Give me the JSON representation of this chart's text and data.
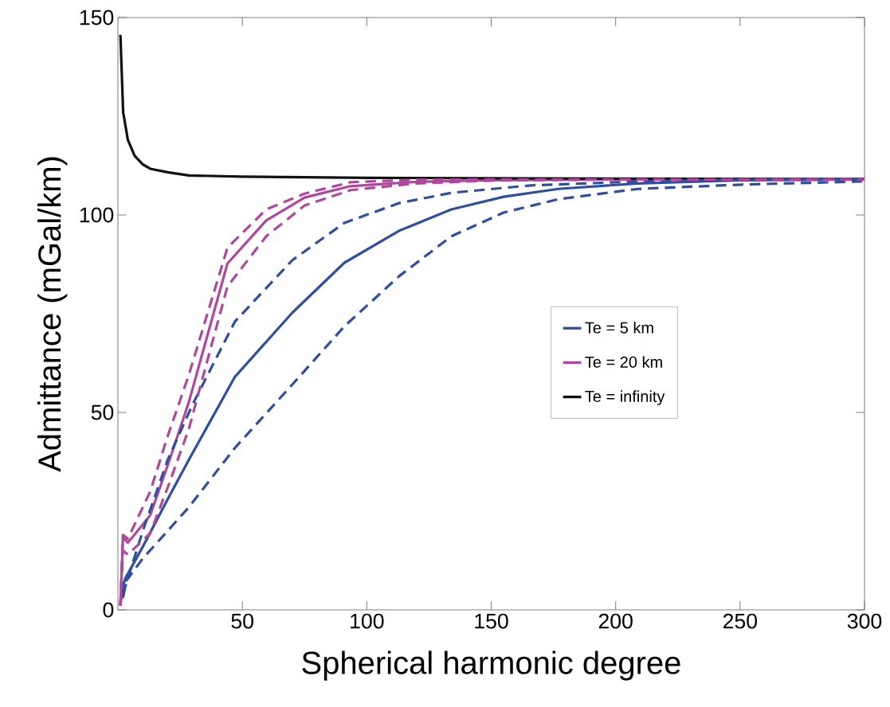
{
  "chart_data": {
    "type": "line",
    "xlabel": "Spherical harmonic degree",
    "ylabel": "Admittance (mGal/km)",
    "xlim": [
      0,
      300
    ],
    "ylim": [
      0,
      150
    ],
    "xticks": [
      50,
      100,
      150,
      200,
      250,
      300
    ],
    "yticks": [
      0,
      50,
      100,
      150
    ],
    "grid": false,
    "legend": "right",
    "series": [
      {
        "name": "Te = 5 km",
        "color": "#2e4fa0",
        "line_style": "solid",
        "x": [
          1,
          2,
          3,
          10,
          20,
          28.5,
          47,
          70,
          91,
          113,
          134,
          155,
          177,
          209,
          250,
          300
        ],
        "values": [
          1.2,
          6,
          8,
          16,
          28,
          38,
          59,
          75.2,
          87.9,
          96,
          101.4,
          104.6,
          106.6,
          108,
          108.8,
          109
        ]
      },
      {
        "name": "Te = 20 km",
        "color": "#b0479e",
        "line_style": "solid",
        "x": [
          1,
          2,
          4,
          13,
          20.7,
          28.5,
          44,
          59.6,
          75,
          93.5,
          120,
          150,
          200,
          300
        ],
        "values": [
          1,
          18.3,
          17,
          24,
          37.9,
          52.6,
          87.7,
          98.6,
          104.4,
          107.3,
          108.4,
          108.8,
          109,
          109
        ]
      },
      {
        "name": "Te = infinity",
        "color": "#111111",
        "line_style": "solid",
        "x": [
          1,
          2.1,
          4,
          6.7,
          10,
          13,
          20,
          28.5,
          50,
          100,
          200,
          300
        ],
        "values": [
          145.6,
          126,
          119,
          115,
          112.8,
          111.7,
          110.8,
          110,
          109.7,
          109.4,
          109.2,
          109.1
        ]
      },
      {
        "color": "#2e4fa0",
        "line_style": "dashed",
        "x": [
          2,
          5,
          10,
          20,
          30,
          47,
          70,
          91,
          113,
          134,
          166,
          210,
          250,
          300
        ],
        "values": [
          4,
          10,
          20,
          38,
          52,
          73,
          88.5,
          98,
          103,
          105.6,
          107.5,
          108.5,
          108.9,
          109
        ]
      },
      {
        "color": "#2e4fa0",
        "line_style": "dashed",
        "x": [
          2,
          3.5,
          10,
          20,
          28.5,
          47,
          70,
          91,
          113,
          134,
          155,
          177,
          209,
          251,
          300
        ],
        "values": [
          3,
          7.5,
          13,
          20,
          26,
          41,
          57,
          71.8,
          84.5,
          94.6,
          100.6,
          104,
          106.6,
          107.7,
          108.5
        ]
      },
      {
        "color": "#b0479e",
        "line_style": "dashed",
        "x": [
          1,
          2,
          4,
          13,
          20,
          28.5,
          44,
          59.6,
          75,
          93.5,
          120,
          150,
          200,
          300
        ],
        "values": [
          1,
          19,
          18,
          30,
          44,
          59.5,
          91.7,
          101.4,
          105.4,
          108.3,
          108.9,
          109,
          109,
          109
        ]
      },
      {
        "color": "#b0479e",
        "line_style": "dashed",
        "x": [
          1,
          2,
          4,
          13,
          20,
          28.5,
          44,
          59.6,
          75,
          93.5,
          120,
          150,
          200,
          300
        ],
        "values": [
          1,
          15,
          14,
          19.4,
          31,
          45.8,
          81.9,
          94.6,
          102.4,
          106.3,
          108,
          108.7,
          109,
          109
        ]
      }
    ]
  }
}
